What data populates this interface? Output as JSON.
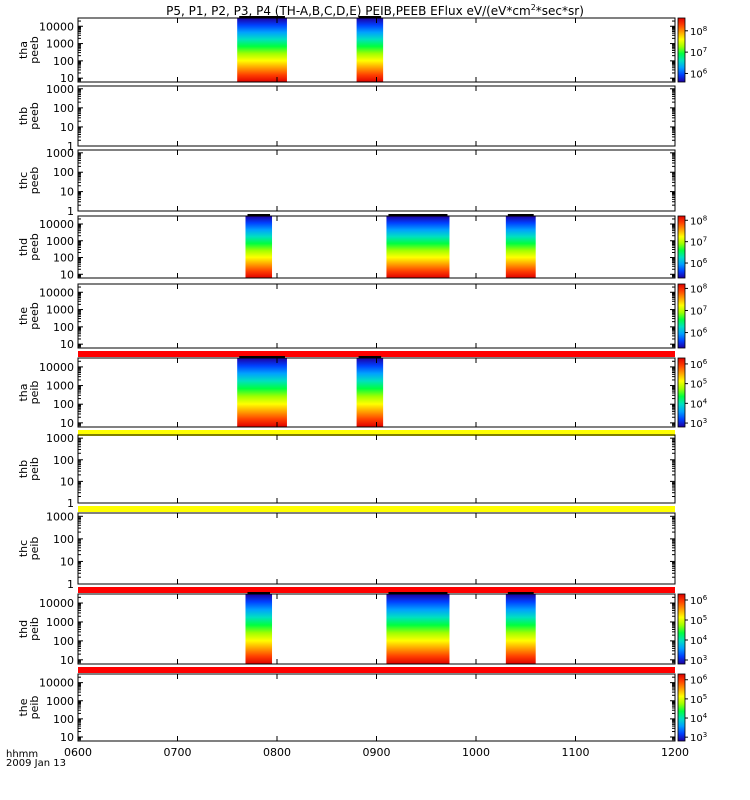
{
  "title_main": "P5, P1, P2, P3, P4 (TH-A,B,C,D,E) PEIB,PEEB EFlux eV/(eV*cm",
  "title_sup": "2",
  "title_tail": "*sec*sr)",
  "footer": {
    "hhmm": "hhmm",
    "date": "2009 Jan 13"
  },
  "colors": {
    "bar_red": "#ff0000",
    "bar_yellow": "#ffff00",
    "bar_black": "#000000",
    "data_rainbow": [
      "#1e00a0",
      "#0040ff",
      "#00a0ff",
      "#00e0c0",
      "#00ff40",
      "#a0ff00",
      "#ffff00",
      "#ffa000",
      "#ff4000",
      "#e00000"
    ]
  },
  "chart_data": {
    "type": "heatmap",
    "x": {
      "range": [
        "0600",
        "1200"
      ],
      "ticks": [
        "0600",
        "0700",
        "0800",
        "0900",
        "1000",
        "1100",
        "1200"
      ],
      "label": "hhmm",
      "date": "2009 Jan 13"
    },
    "panels": [
      {
        "name": "tha peeb",
        "yaxis": [
          "tha",
          "peeb"
        ],
        "y_log": true,
        "ylim": [
          6,
          30000
        ],
        "yticks": [
          "10000",
          "1000",
          "100",
          "10"
        ],
        "colorbar": {
          "log": true,
          "range": [
            "10^5.6",
            "10^8.6"
          ],
          "labels": [
            "10^8",
            "10^7",
            "10^6"
          ]
        },
        "status_bar": "none",
        "data_intervals": [
          [
            "0736",
            "0806"
          ],
          [
            "0848",
            "0904"
          ]
        ]
      },
      {
        "name": "thb peeb",
        "yaxis": [
          "thb",
          "peeb"
        ],
        "y_log": true,
        "ylim": [
          1,
          1400
        ],
        "yticks": [
          "1000",
          "100",
          "10",
          "1"
        ],
        "colorbar": null,
        "status_bar": "none",
        "data_intervals": []
      },
      {
        "name": "thc peeb",
        "yaxis": [
          "thc",
          "peeb"
        ],
        "y_log": true,
        "ylim": [
          1,
          1400
        ],
        "yticks": [
          "1000",
          "100",
          "10",
          "1"
        ],
        "colorbar": null,
        "status_bar": "none",
        "data_intervals": []
      },
      {
        "name": "thd peeb",
        "yaxis": [
          "thd",
          "peeb"
        ],
        "y_log": true,
        "ylim": [
          6,
          30000
        ],
        "yticks": [
          "10000",
          "1000",
          "100",
          "10"
        ],
        "colorbar": {
          "log": true,
          "range": [
            "10^5.3",
            "10^8.2"
          ],
          "labels": [
            "10^8",
            "10^7",
            "10^6"
          ]
        },
        "status_bar": "none",
        "data_intervals": [
          [
            "0741",
            "0757"
          ],
          [
            "0906",
            "0944"
          ],
          [
            "1018",
            "1036"
          ]
        ]
      },
      {
        "name": "the peeb",
        "yaxis": [
          "the",
          "peeb"
        ],
        "y_log": true,
        "ylim": [
          6,
          30000
        ],
        "yticks": [
          "10000",
          "1000",
          "100",
          "10"
        ],
        "colorbar": {
          "log": true,
          "range": [
            "10^5.3",
            "10^8.2"
          ],
          "labels": [
            "10^8",
            "10^7",
            "10^6"
          ]
        },
        "status_bar": "red",
        "data_intervals": []
      },
      {
        "name": "tha peib",
        "yaxis": [
          "tha",
          "peib"
        ],
        "y_log": true,
        "ylim": [
          6,
          30000
        ],
        "yticks": [
          "10000",
          "1000",
          "100",
          "10"
        ],
        "colorbar": {
          "log": true,
          "range": [
            "10^2.8",
            "10^6.3"
          ],
          "labels": [
            "10^6",
            "10^5",
            "10^4",
            "10^3"
          ]
        },
        "status_bar": "yellow",
        "data_intervals": [
          [
            "0736",
            "0806"
          ],
          [
            "0848",
            "0904"
          ]
        ]
      },
      {
        "name": "thb peib",
        "yaxis": [
          "thb",
          "peib"
        ],
        "y_log": true,
        "ylim": [
          1,
          1400
        ],
        "yticks": [
          "1000",
          "100",
          "10",
          "1"
        ],
        "colorbar": null,
        "status_bar": "yellow",
        "data_intervals": []
      },
      {
        "name": "thc peib",
        "yaxis": [
          "thc",
          "peib"
        ],
        "y_log": true,
        "ylim": [
          1,
          1400
        ],
        "yticks": [
          "1000",
          "100",
          "10",
          "1"
        ],
        "colorbar": null,
        "status_bar": "red",
        "data_intervals": []
      },
      {
        "name": "thd peib",
        "yaxis": [
          "thd",
          "peib"
        ],
        "y_log": true,
        "ylim": [
          6,
          30000
        ],
        "yticks": [
          "10000",
          "1000",
          "100",
          "10"
        ],
        "colorbar": {
          "log": true,
          "range": [
            "10^2.8",
            "10^6.3"
          ],
          "labels": [
            "10^6",
            "10^5",
            "10^4",
            "10^3"
          ]
        },
        "status_bar": "red",
        "data_intervals": [
          [
            "0741",
            "0757"
          ],
          [
            "0906",
            "0944"
          ],
          [
            "1018",
            "1036"
          ]
        ]
      },
      {
        "name": "the peib",
        "yaxis": [
          "the",
          "peib"
        ],
        "y_log": true,
        "ylim": [
          6,
          30000
        ],
        "yticks": [
          "10000",
          "1000",
          "100",
          "10"
        ],
        "colorbar": {
          "log": true,
          "range": [
            "10^2.8",
            "10^6.3"
          ],
          "labels": [
            "10^6",
            "10^5",
            "10^4",
            "10^3"
          ]
        },
        "status_bar": "none",
        "data_intervals": []
      }
    ]
  }
}
